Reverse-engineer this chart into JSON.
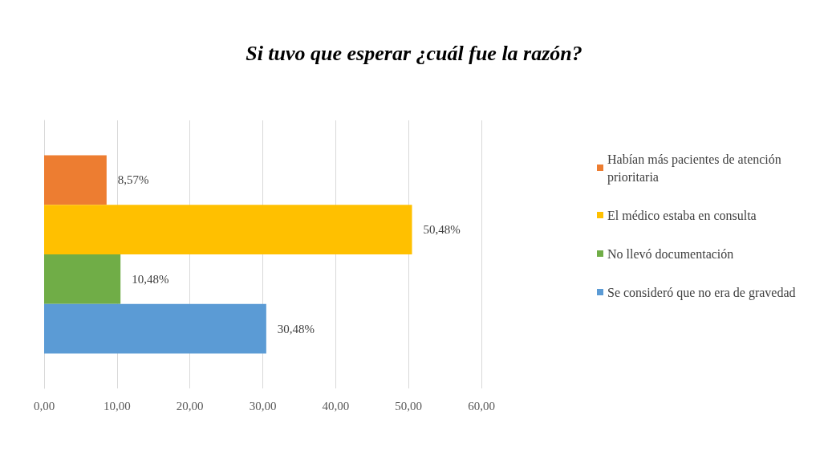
{
  "chart_data": {
    "type": "bar",
    "title": "Si tuvo que esperar ¿cuál fue la razón?",
    "orientation": "horizontal",
    "categories": [
      null
    ],
    "series": [
      {
        "name": "Habían más pacientes de atención prioritaria",
        "color": "#ed7d31",
        "values": [
          8.57
        ],
        "value_labels": [
          "8,57%"
        ]
      },
      {
        "name": "El médico estaba en consulta",
        "color": "#ffc000",
        "values": [
          50.48
        ],
        "value_labels": [
          "50,48%"
        ]
      },
      {
        "name": "No llevó documentación",
        "color": "#70ad47",
        "values": [
          10.48
        ],
        "value_labels": [
          "10,48%"
        ]
      },
      {
        "name": "Se consideró que no era de gravedad",
        "color": "#5b9bd5",
        "values": [
          30.48
        ],
        "value_labels": [
          "30,48%"
        ]
      }
    ],
    "xlim": [
      0,
      60
    ],
    "xticks": [
      {
        "value": 0,
        "label": "0,00"
      },
      {
        "value": 10,
        "label": "10,00"
      },
      {
        "value": 20,
        "label": "20,00"
      },
      {
        "value": 30,
        "label": "30,00"
      },
      {
        "value": 40,
        "label": "40,00"
      },
      {
        "value": 50,
        "label": "50,00"
      },
      {
        "value": 60,
        "label": "60,00"
      }
    ],
    "grid": "x",
    "legend": "right"
  }
}
